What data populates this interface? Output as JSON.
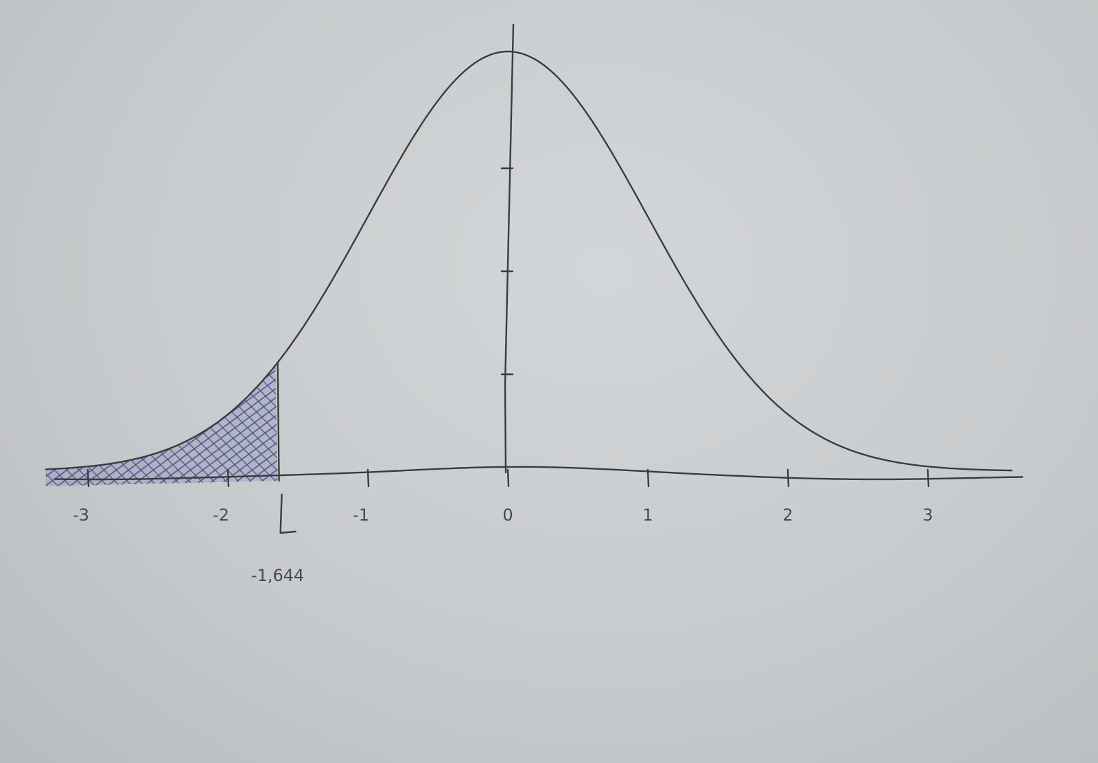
{
  "chart_data": {
    "type": "area",
    "description_kind": "hand-drawn normal distribution",
    "x_ticks": [
      "-3",
      "-2",
      "-1",
      "0",
      "1",
      "2",
      "3"
    ],
    "tick_values": [
      -3,
      -2,
      -1,
      0,
      1,
      2,
      3
    ],
    "xlim": [
      -3.3,
      3.6
    ],
    "shaded_region": {
      "from": -3.3,
      "to": -1.644
    },
    "critical_value": -1.644,
    "critical_label": "-1,644",
    "ink_color": "#3b3b3d",
    "shade_color": "#4b4f92"
  }
}
